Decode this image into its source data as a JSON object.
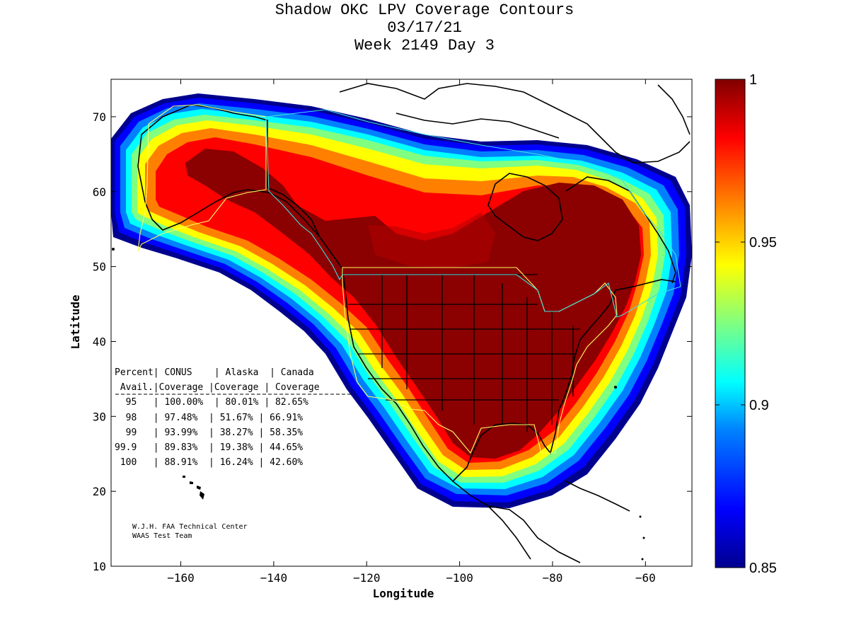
{
  "title": {
    "line1": "Shadow OKC LPV Coverage Contours",
    "line2": "03/17/21",
    "line3": "Week 2149 Day 3"
  },
  "axes": {
    "xlabel": "Longitude",
    "ylabel": "Latitude",
    "xlim": [
      -175,
      -50
    ],
    "ylim": [
      10,
      75
    ],
    "xticks": [
      -160,
      -140,
      -120,
      -100,
      -80,
      -60
    ],
    "yticks": [
      10,
      20,
      30,
      40,
      50,
      60,
      70
    ]
  },
  "colorbar": {
    "range": [
      0.85,
      1
    ],
    "ticks": [
      {
        "value": 1,
        "label": "1"
      },
      {
        "value": 0.95,
        "label": "0.95"
      },
      {
        "value": 0.9,
        "label": "0.9"
      },
      {
        "value": 0.85,
        "label": "0.85"
      }
    ],
    "colormap": "jet",
    "colors": [
      "#00008f",
      "#0000ff",
      "#0080ff",
      "#00ffff",
      "#80ff80",
      "#ffff00",
      "#ff8000",
      "#ff0000",
      "#800000"
    ]
  },
  "table": {
    "header1": "Percent| CONUS    | Alaska  | Canada",
    "header2": " Avail.|Coverage |Coverage | Coverage",
    "separator": "------------------------------------------",
    "rows": [
      "  95   | 100.00%  | 80.01% | 82.65%",
      "  98   | 97.48%  | 51.67% | 66.91%",
      "  99   | 93.99%  | 38.27% | 58.35%",
      "99.9   | 89.83%  | 19.38% | 44.65%",
      " 100   | 88.91%  | 16.24% | 42.60%"
    ]
  },
  "credit": {
    "line1": "W.J.H. FAA Technical Center",
    "line2": "WAAS Test Team"
  },
  "chart_data": {
    "type": "heatmap",
    "title": "Shadow OKC LPV Coverage Contours",
    "xlabel": "Longitude",
    "ylabel": "Latitude",
    "xlim": [
      -175,
      -50
    ],
    "ylim": [
      10,
      75
    ],
    "value_range": [
      0.85,
      1
    ],
    "coverage_table": {
      "columns": [
        "Percent Avail.",
        "CONUS Coverage",
        "Alaska Coverage",
        "Canada Coverage"
      ],
      "rows": [
        [
          "95",
          "100.00%",
          "80.01%",
          "82.65%"
        ],
        [
          "98",
          "97.48%",
          "51.67%",
          "66.91%"
        ],
        [
          "99",
          "93.99%",
          "38.27%",
          "58.35%"
        ],
        [
          "99.9",
          "89.83%",
          "19.38%",
          "44.65%"
        ],
        [
          "100",
          "88.91%",
          "16.24%",
          "42.60%"
        ]
      ]
    }
  }
}
